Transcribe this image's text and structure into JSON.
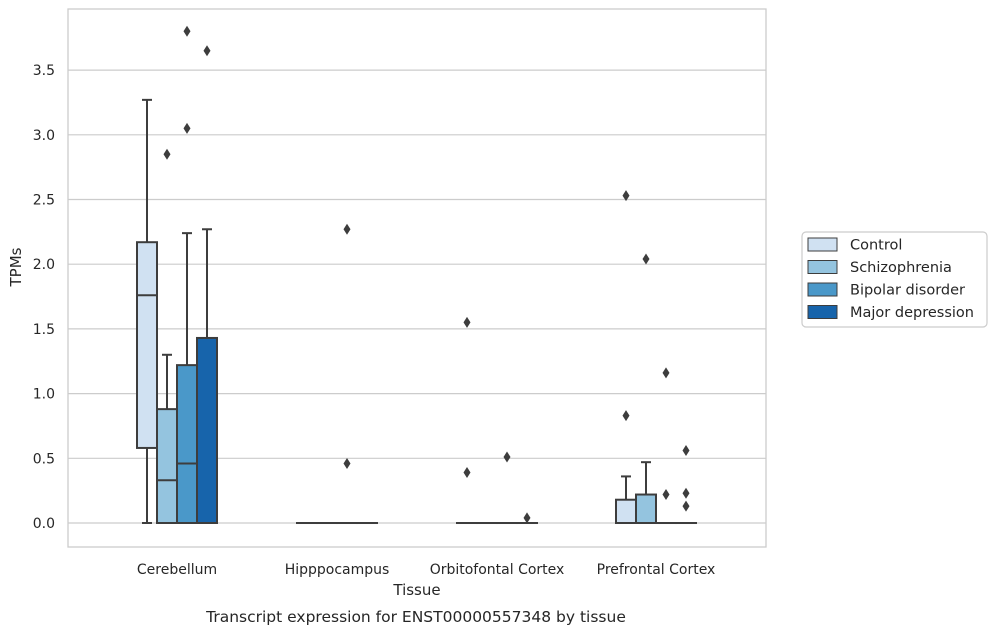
{
  "chart_data": {
    "type": "box",
    "xlabel": "Tissue",
    "ylabel": "TPMs",
    "caption": "Transcript expression for ENST00000557348 by tissue",
    "ylim": [
      -0.18,
      3.98
    ],
    "yticks": [
      "0.0",
      "0.5",
      "1.0",
      "1.5",
      "2.0",
      "2.5",
      "3.0",
      "3.5"
    ],
    "yticks_values": [
      0,
      0.5,
      1.0,
      1.5,
      2.0,
      2.5,
      3.0,
      3.5
    ],
    "grid": true,
    "legend_position": "right",
    "categories": [
      "Cerebellum",
      "Hipppocampus",
      "Orbitofontal Cortex",
      "Prefrontal Cortex"
    ],
    "series": [
      {
        "name": "Control",
        "color": "#d0e1f2",
        "boxes": [
          {
            "low": 0.0,
            "q1": 0.58,
            "median": 1.76,
            "q3": 2.17,
            "high": 3.27,
            "outliers": []
          },
          {
            "low": 0.0,
            "q1": 0.0,
            "median": 0.0,
            "q3": 0.0,
            "high": 0.0,
            "outliers": []
          },
          {
            "low": 0.0,
            "q1": 0.0,
            "median": 0.0,
            "q3": 0.0,
            "high": 0.0,
            "outliers": [
              1.55,
              0.39
            ]
          },
          {
            "low": 0.0,
            "q1": 0.0,
            "median": 0.0,
            "q3": 0.18,
            "high": 0.36,
            "outliers": [
              2.53,
              0.83
            ]
          }
        ]
      },
      {
        "name": "Schizophrenia",
        "color": "#94c4df",
        "boxes": [
          {
            "low": 0.0,
            "q1": 0.0,
            "median": 0.33,
            "q3": 0.88,
            "high": 1.3,
            "outliers": [
              2.85
            ]
          },
          {
            "low": 0.0,
            "q1": 0.0,
            "median": 0.0,
            "q3": 0.0,
            "high": 0.0,
            "outliers": []
          },
          {
            "low": 0.0,
            "q1": 0.0,
            "median": 0.0,
            "q3": 0.0,
            "high": 0.0,
            "outliers": []
          },
          {
            "low": 0.0,
            "q1": 0.0,
            "median": 0.0,
            "q3": 0.22,
            "high": 0.47,
            "outliers": [
              2.04
            ]
          }
        ]
      },
      {
        "name": "Bipolar disorder",
        "color": "#4a98c9",
        "boxes": [
          {
            "low": 0.0,
            "q1": 0.0,
            "median": 0.46,
            "q3": 1.22,
            "high": 2.24,
            "outliers": [
              3.8,
              3.05
            ]
          },
          {
            "low": 0.0,
            "q1": 0.0,
            "median": 0.0,
            "q3": 0.0,
            "high": 0.0,
            "outliers": [
              2.27,
              0.46
            ]
          },
          {
            "low": 0.0,
            "q1": 0.0,
            "median": 0.0,
            "q3": 0.0,
            "high": 0.0,
            "outliers": [
              0.51
            ]
          },
          {
            "low": 0.0,
            "q1": 0.0,
            "median": 0.0,
            "q3": 0.0,
            "high": 0.0,
            "outliers": [
              1.16,
              0.22
            ]
          }
        ]
      },
      {
        "name": "Major depression",
        "color": "#1764ab",
        "boxes": [
          {
            "low": 0.0,
            "q1": 0.0,
            "median": 0.0,
            "q3": 1.43,
            "high": 2.27,
            "outliers": [
              3.65
            ]
          },
          {
            "low": 0.0,
            "q1": 0.0,
            "median": 0.0,
            "q3": 0.0,
            "high": 0.0,
            "outliers": []
          },
          {
            "low": 0.0,
            "q1": 0.0,
            "median": 0.0,
            "q3": 0.0,
            "high": 0.0,
            "outliers": [
              0.04
            ]
          },
          {
            "low": 0.0,
            "q1": 0.0,
            "median": 0.0,
            "q3": 0.0,
            "high": 0.0,
            "outliers": [
              0.56,
              0.23,
              0.13
            ]
          }
        ]
      }
    ],
    "colors": {
      "grid": "#cccccc",
      "frame": "#cccccc",
      "line": "#3d3d3d",
      "background": "#ffffff"
    }
  }
}
